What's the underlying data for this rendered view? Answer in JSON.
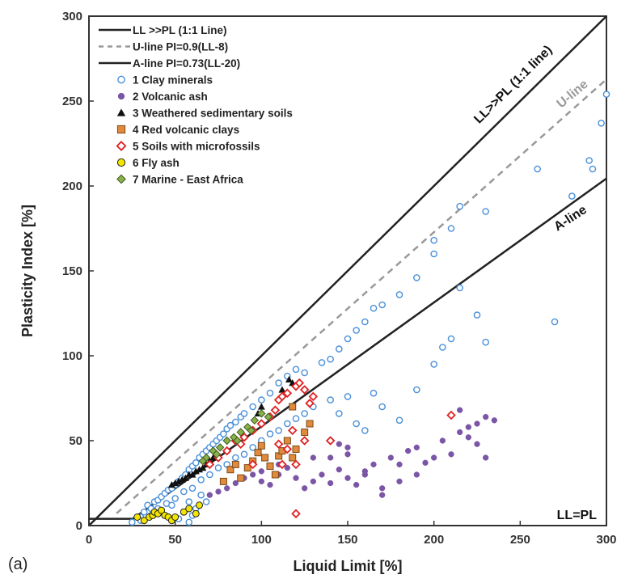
{
  "panel_label": "(a)",
  "chart_data": {
    "type": "scatter",
    "xlabel": "Liquid Limit [%]",
    "ylabel": "Plasticity Index [%]",
    "xlim": [
      0,
      300
    ],
    "ylim": [
      0,
      300
    ],
    "x_ticks": [
      0,
      50,
      100,
      150,
      200,
      250,
      300
    ],
    "y_ticks": [
      0,
      50,
      100,
      150,
      200,
      250,
      300
    ],
    "grid": false,
    "legend_position": "top-left",
    "lines": [
      {
        "name": "LL >>PL (1:1 Line)",
        "slope": 1.0,
        "x0": 0,
        "x_start": 0,
        "x_end": 300,
        "color": "#222222",
        "dash": "none"
      },
      {
        "name": "U-line PI=0.9(LL-8)",
        "slope": 0.9,
        "x0": 8,
        "x_start": 16,
        "x_end": 300,
        "color": "#999999",
        "dash": "8,6"
      },
      {
        "name": "A-line PI=0.73(LL-20)",
        "slope": 0.73,
        "x0": 20,
        "x_start": 25.5,
        "x_end": 300,
        "color": "#222222",
        "dash": "none"
      }
    ],
    "low_line": {
      "x": [
        0,
        25.5
      ],
      "y": [
        4,
        4
      ],
      "color": "#222222"
    },
    "series": [
      {
        "name": "1 Clay minerals",
        "marker": "circle-open",
        "color": "#4a90d9",
        "points": [
          [
            25,
            2
          ],
          [
            30,
            5
          ],
          [
            32,
            8
          ],
          [
            34,
            12
          ],
          [
            36,
            10
          ],
          [
            38,
            14
          ],
          [
            40,
            15
          ],
          [
            42,
            17
          ],
          [
            44,
            19
          ],
          [
            46,
            21
          ],
          [
            48,
            22
          ],
          [
            50,
            24
          ],
          [
            52,
            26
          ],
          [
            54,
            28
          ],
          [
            56,
            30
          ],
          [
            58,
            33
          ],
          [
            60,
            35
          ],
          [
            62,
            37
          ],
          [
            64,
            40
          ],
          [
            66,
            42
          ],
          [
            68,
            44
          ],
          [
            70,
            46
          ],
          [
            72,
            48
          ],
          [
            74,
            50
          ],
          [
            76,
            52
          ],
          [
            78,
            54
          ],
          [
            80,
            57
          ],
          [
            82,
            59
          ],
          [
            85,
            61
          ],
          [
            88,
            64
          ],
          [
            90,
            66
          ],
          [
            95,
            70
          ],
          [
            100,
            74
          ],
          [
            105,
            78
          ],
          [
            110,
            84
          ],
          [
            115,
            88
          ],
          [
            120,
            92
          ],
          [
            125,
            90
          ],
          [
            135,
            96
          ],
          [
            140,
            98
          ],
          [
            145,
            104
          ],
          [
            150,
            110
          ],
          [
            155,
            115
          ],
          [
            160,
            120
          ],
          [
            165,
            128
          ],
          [
            170,
            130
          ],
          [
            180,
            136
          ],
          [
            190,
            146
          ],
          [
            200,
            160
          ],
          [
            200,
            168
          ],
          [
            210,
            175
          ],
          [
            215,
            188
          ],
          [
            230,
            185
          ],
          [
            260,
            210
          ],
          [
            280,
            194
          ],
          [
            290,
            215
          ],
          [
            292,
            210
          ],
          [
            297,
            237
          ],
          [
            300,
            254
          ],
          [
            40,
            10
          ],
          [
            45,
            13
          ],
          [
            50,
            16
          ],
          [
            55,
            20
          ],
          [
            60,
            22
          ],
          [
            65,
            27
          ],
          [
            70,
            30
          ],
          [
            75,
            34
          ],
          [
            80,
            36
          ],
          [
            85,
            40
          ],
          [
            90,
            42
          ],
          [
            95,
            46
          ],
          [
            100,
            50
          ],
          [
            105,
            54
          ],
          [
            110,
            56
          ],
          [
            115,
            60
          ],
          [
            120,
            63
          ],
          [
            125,
            66
          ],
          [
            130,
            70
          ],
          [
            140,
            74
          ],
          [
            145,
            66
          ],
          [
            150,
            76
          ],
          [
            155,
            60
          ],
          [
            160,
            56
          ],
          [
            165,
            78
          ],
          [
            170,
            70
          ],
          [
            180,
            62
          ],
          [
            190,
            80
          ],
          [
            200,
            95
          ],
          [
            205,
            105
          ],
          [
            210,
            110
          ],
          [
            215,
            140
          ],
          [
            225,
            124
          ],
          [
            230,
            108
          ],
          [
            270,
            120
          ],
          [
            60,
            6
          ],
          [
            55,
            8
          ],
          [
            52,
            4
          ],
          [
            58,
            2
          ],
          [
            62,
            10
          ],
          [
            68,
            14
          ],
          [
            65,
            18
          ],
          [
            58,
            14
          ],
          [
            48,
            12
          ],
          [
            42,
            8
          ],
          [
            36,
            6
          ],
          [
            30,
            3
          ]
        ]
      },
      {
        "name": "2 Volcanic ash",
        "marker": "circle-filled",
        "color": "#7b55a6",
        "points": [
          [
            70,
            18
          ],
          [
            75,
            20
          ],
          [
            80,
            22
          ],
          [
            85,
            25
          ],
          [
            90,
            28
          ],
          [
            95,
            30
          ],
          [
            100,
            26
          ],
          [
            100,
            32
          ],
          [
            105,
            24
          ],
          [
            110,
            30
          ],
          [
            115,
            34
          ],
          [
            120,
            28
          ],
          [
            125,
            22
          ],
          [
            130,
            26
          ],
          [
            135,
            30
          ],
          [
            140,
            25
          ],
          [
            145,
            33
          ],
          [
            150,
            28
          ],
          [
            155,
            24
          ],
          [
            160,
            32
          ],
          [
            165,
            36
          ],
          [
            170,
            18
          ],
          [
            175,
            40
          ],
          [
            180,
            36
          ],
          [
            185,
            44
          ],
          [
            190,
            46
          ],
          [
            195,
            37
          ],
          [
            200,
            40
          ],
          [
            205,
            50
          ],
          [
            210,
            42
          ],
          [
            215,
            55
          ],
          [
            220,
            58
          ],
          [
            225,
            60
          ],
          [
            230,
            64
          ],
          [
            235,
            62
          ],
          [
            215,
            68
          ],
          [
            220,
            52
          ],
          [
            225,
            48
          ],
          [
            230,
            40
          ],
          [
            145,
            48
          ],
          [
            150,
            42
          ],
          [
            160,
            30
          ],
          [
            170,
            22
          ],
          [
            180,
            26
          ],
          [
            190,
            30
          ],
          [
            110,
            36
          ],
          [
            120,
            36
          ],
          [
            130,
            40
          ],
          [
            140,
            40
          ],
          [
            150,
            46
          ]
        ]
      },
      {
        "name": "3 Weathered sedimentary soils",
        "marker": "triangle",
        "color": "#111111",
        "points": [
          [
            48,
            24
          ],
          [
            50,
            25
          ],
          [
            52,
            26
          ],
          [
            54,
            27
          ],
          [
            56,
            28
          ],
          [
            58,
            30
          ],
          [
            60,
            30
          ],
          [
            62,
            32
          ],
          [
            64,
            33
          ],
          [
            66,
            34
          ],
          [
            68,
            36
          ],
          [
            70,
            38
          ],
          [
            72,
            40
          ],
          [
            98,
            66
          ],
          [
            100,
            70
          ],
          [
            112,
            80
          ],
          [
            118,
            84
          ],
          [
            116,
            86
          ]
        ]
      },
      {
        "name": "4 Red volcanic clays",
        "marker": "square",
        "color": "#e08a3c",
        "points": [
          [
            78,
            26
          ],
          [
            82,
            33
          ],
          [
            85,
            36
          ],
          [
            88,
            28
          ],
          [
            92,
            34
          ],
          [
            95,
            38
          ],
          [
            98,
            43
          ],
          [
            100,
            47
          ],
          [
            102,
            40
          ],
          [
            105,
            35
          ],
          [
            108,
            30
          ],
          [
            110,
            41
          ],
          [
            112,
            44
          ],
          [
            115,
            50
          ],
          [
            118,
            40
          ],
          [
            120,
            45
          ],
          [
            125,
            55
          ],
          [
            128,
            60
          ],
          [
            118,
            70
          ]
        ]
      },
      {
        "name": "5 Soils with microfossils",
        "marker": "diamond-open",
        "color": "#e02020",
        "points": [
          [
            70,
            36
          ],
          [
            75,
            40
          ],
          [
            80,
            44
          ],
          [
            85,
            50
          ],
          [
            88,
            48
          ],
          [
            90,
            52
          ],
          [
            95,
            56
          ],
          [
            100,
            60
          ],
          [
            105,
            64
          ],
          [
            108,
            68
          ],
          [
            110,
            74
          ],
          [
            112,
            76
          ],
          [
            115,
            78
          ],
          [
            120,
            82
          ],
          [
            122,
            84
          ],
          [
            125,
            80
          ],
          [
            130,
            76
          ],
          [
            128,
            72
          ],
          [
            95,
            36
          ],
          [
            110,
            48
          ],
          [
            115,
            45
          ],
          [
            120,
            36
          ],
          [
            125,
            50
          ],
          [
            120,
            7
          ],
          [
            140,
            50
          ],
          [
            210,
            65
          ],
          [
            118,
            56
          ],
          [
            112,
            36
          ]
        ]
      },
      {
        "name": "6 Fly ash",
        "marker": "circle-yellow",
        "color": "#f2e500",
        "points": [
          [
            28,
            5
          ],
          [
            32,
            3
          ],
          [
            35,
            5
          ],
          [
            37,
            6
          ],
          [
            38,
            8
          ],
          [
            40,
            7
          ],
          [
            42,
            9
          ],
          [
            44,
            6
          ],
          [
            46,
            5
          ],
          [
            48,
            3
          ],
          [
            50,
            5
          ],
          [
            55,
            8
          ],
          [
            58,
            10
          ],
          [
            62,
            7
          ],
          [
            64,
            12
          ]
        ]
      },
      {
        "name": "7 Marine - East Africa",
        "marker": "diamond-green",
        "color": "#8ab04a",
        "points": [
          [
            68,
            40
          ],
          [
            72,
            44
          ],
          [
            76,
            46
          ],
          [
            80,
            50
          ],
          [
            84,
            52
          ],
          [
            88,
            55
          ],
          [
            92,
            58
          ],
          [
            96,
            62
          ],
          [
            100,
            66
          ],
          [
            104,
            64
          ],
          [
            66,
            38
          ],
          [
            74,
            42
          ],
          [
            86,
            50
          ],
          [
            94,
            56
          ]
        ]
      }
    ],
    "annotations": [
      {
        "text": "LL>>PL (1:1 line)",
        "color": "#111111"
      },
      {
        "text": "U-line",
        "color": "#999999"
      },
      {
        "text": "A-line",
        "color": "#111111"
      },
      {
        "text": "LL=PL",
        "color": "#111111"
      }
    ]
  }
}
